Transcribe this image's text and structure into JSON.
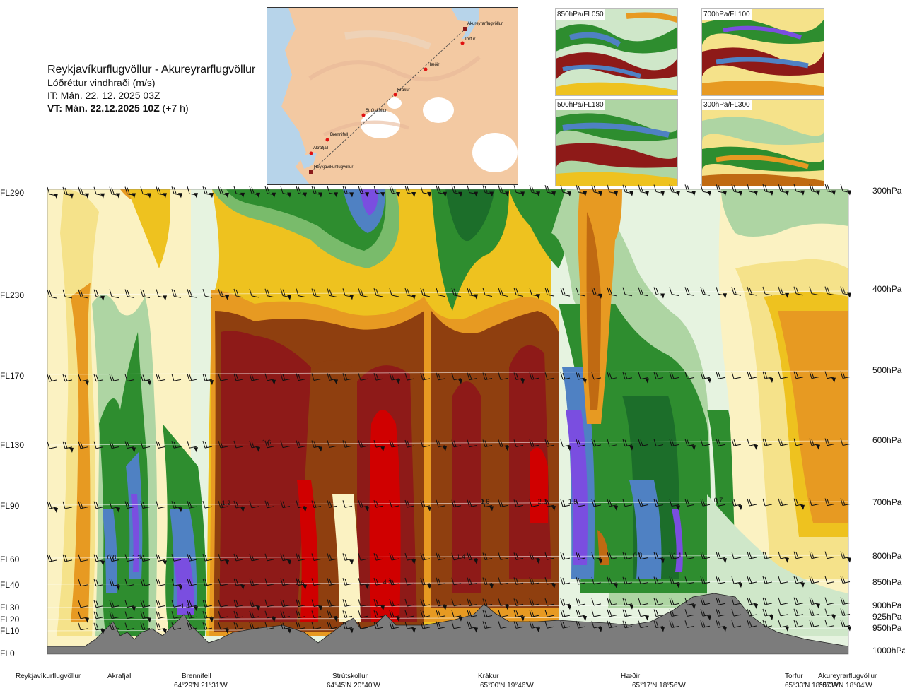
{
  "header": {
    "title": "Reykjavíkurflugvöllur - Akureyrarflugvöllur",
    "subtitle": "Lóðréttur vindhraði (m/s)",
    "issue_time": "IT: Mán. 22. 12. 2025 03Z",
    "valid_time_bold": "VT: Mán. 22.12.2025 10Z",
    "valid_time_offset": "(+7 h)"
  },
  "route_map": {
    "points": [
      {
        "name": "Reykjavíkurflugvöllur"
      },
      {
        "name": "Akrafjall"
      },
      {
        "name": "Brennifell"
      },
      {
        "name": "Strútskollur"
      },
      {
        "name": "Krákur"
      },
      {
        "name": "Hæðir"
      },
      {
        "name": "Torfur"
      },
      {
        "name": "Akureyrarflugvöllur"
      }
    ]
  },
  "thumbnails": [
    {
      "label": "850hPa/FL050"
    },
    {
      "label": "700hPa/FL100"
    },
    {
      "label": "500hPa/FL180"
    },
    {
      "label": "300hPa/FL300"
    }
  ],
  "colors": {
    "land": "#f3c9a2",
    "sea": "#b7d4ea",
    "terrain": "#7c7c7c",
    "scale": [
      "#e6f3e0",
      "#cfe7c9",
      "#aed5a3",
      "#79bb6b",
      "#2e8d2f",
      "#1c6e2a",
      "#4f81c3",
      "#7a4ee0",
      "#fbf2c2",
      "#f5e28a",
      "#eec21f",
      "#e79a22",
      "#c06a12",
      "#8f3f0f",
      "#8e1a18",
      "#d00000"
    ]
  },
  "chart_data": {
    "type": "heatmap",
    "title": "Lóðréttur vindhraði (m/s)",
    "xlabel": "",
    "ylabel": "",
    "left_axis": [
      "FL290",
      "FL230",
      "FL170",
      "FL130",
      "FL90",
      "FL60",
      "FL40",
      "FL30",
      "FL20",
      "FL10",
      "FL0"
    ],
    "right_axis": [
      "300hPa",
      "400hPa",
      "500hPa",
      "600hPa",
      "700hPa",
      "800hPa",
      "850hPa",
      "900hPa",
      "925hPa",
      "950hPa",
      "1000hPa"
    ],
    "locations": [
      {
        "name": "Reykjavíkurflugvöllur",
        "coord": ""
      },
      {
        "name": "Akrafjall",
        "coord": ""
      },
      {
        "name": "Brennifell",
        "coord": "64°29'N 21°31'W"
      },
      {
        "name": "Strútskollur",
        "coord": "64°45'N 20°40'W"
      },
      {
        "name": "Krákur",
        "coord": "65°00'N 19°46'W"
      },
      {
        "name": "Hæðir",
        "coord": "65°17'N 18°56'W"
      },
      {
        "name": "Torfur",
        "coord": "65°33'N 18°07'W"
      },
      {
        "name": "Akureyrarflugvöllur",
        "coord": "65°39'N 18°04'W"
      }
    ],
    "value_labels": [
      "0.8",
      "1.3",
      "1.4",
      "1.6",
      "1.2",
      "2.6",
      "4.3",
      "1.4",
      "1.6",
      "2.2",
      "1.5",
      "0.8",
      "1.1",
      "0.7"
    ]
  }
}
